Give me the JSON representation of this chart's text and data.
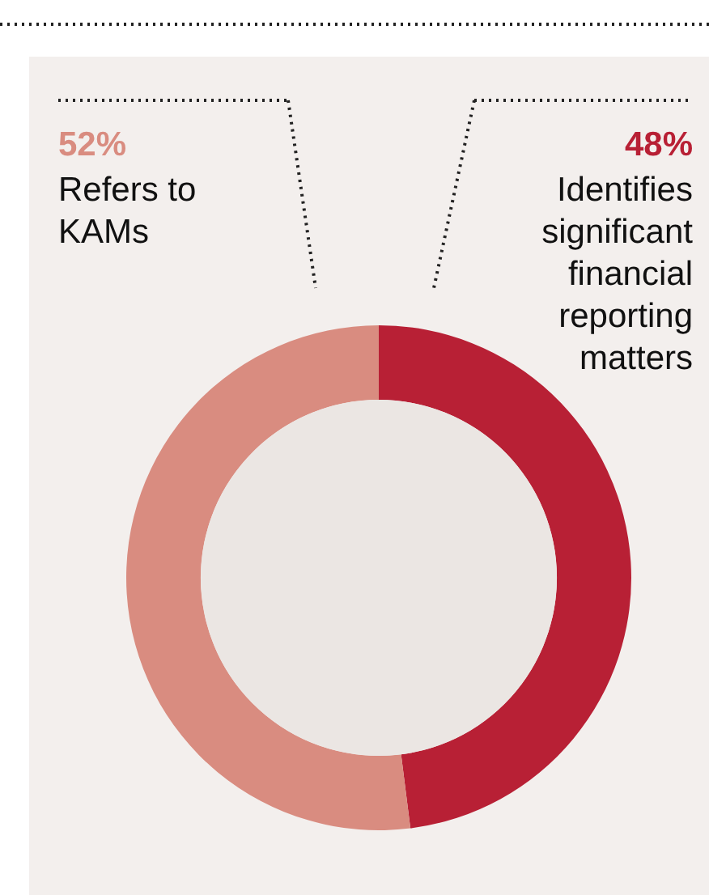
{
  "chart_data": {
    "type": "donut",
    "categories": [
      "Identifies significant financial reporting matters",
      "Refers to KAMs"
    ],
    "values": [
      48,
      52
    ],
    "colors": [
      "#b82035",
      "#d98c80"
    ],
    "value_labels": [
      "48%",
      "52%"
    ]
  }
}
